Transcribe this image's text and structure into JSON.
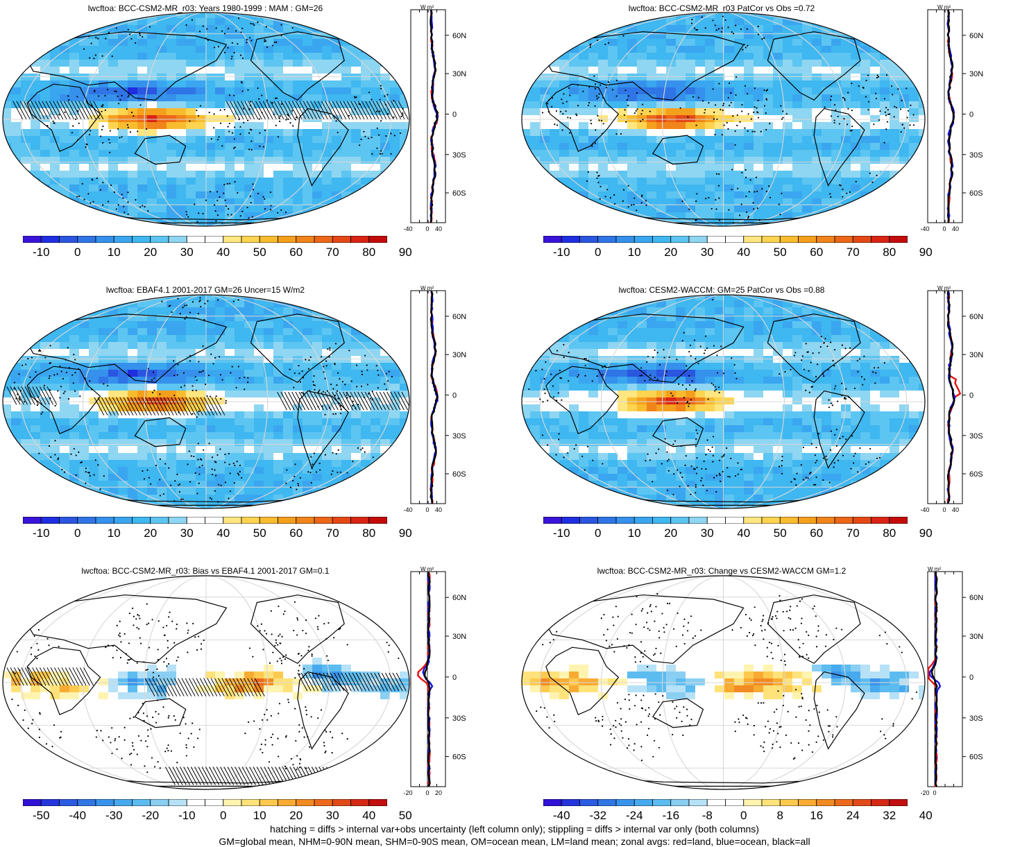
{
  "panels": [
    {
      "title": "lwcftoa: BCC-CSM2-MR_r03: Years 1980-1999 : MAM : GM=26",
      "colorbar": [
        "-10",
        "0",
        "10",
        "20",
        "30",
        "40",
        "50",
        "60",
        "70",
        "80",
        "90"
      ],
      "profile_xticks": [
        "-40",
        "0",
        "40"
      ],
      "profile_unit": "W m²",
      "lat_ticks": [
        "60N",
        "30N",
        "0",
        "30S",
        "60S"
      ],
      "palette": "full"
    },
    {
      "title": "lwcftoa: BCC-CSM2-MR_r03 PatCor vs Obs =0.72",
      "colorbar": [
        "-10",
        "0",
        "10",
        "20",
        "30",
        "40",
        "50",
        "60",
        "70",
        "80",
        "90"
      ],
      "profile_xticks": [
        "-40",
        "0",
        "40"
      ],
      "profile_unit": "W m²",
      "lat_ticks": [
        "60N",
        "30N",
        "0",
        "30S",
        "60S"
      ],
      "palette": "full"
    },
    {
      "title": "lwcftoa: EBAF4.1 2001-2017 GM=26 Uncer=15 W/m2",
      "colorbar": [
        "-10",
        "0",
        "10",
        "20",
        "30",
        "40",
        "50",
        "60",
        "70",
        "80",
        "90"
      ],
      "profile_xticks": [
        "-40",
        "0",
        "40"
      ],
      "profile_unit": "W m²",
      "lat_ticks": [
        "60N",
        "30N",
        "0",
        "30S",
        "60S"
      ],
      "palette": "full"
    },
    {
      "title": "lwcftoa: CESM2-WACCM: GM=25 PatCor vs Obs =0.88",
      "colorbar": [
        "-10",
        "0",
        "10",
        "20",
        "30",
        "40",
        "50",
        "60",
        "70",
        "80",
        "90"
      ],
      "profile_xticks": [
        "-40",
        "0",
        "40"
      ],
      "profile_unit": "W m²",
      "lat_ticks": [
        "60N",
        "30N",
        "0",
        "30S",
        "60S"
      ],
      "palette": "full"
    },
    {
      "title": "lwcftoa: BCC-CSM2-MR_r03: Bias vs EBAF4.1 2001-2017 GM=0.1",
      "colorbar": [
        "-50",
        "-40",
        "-30",
        "-20",
        "-10",
        "0",
        "10",
        "20",
        "30",
        "40",
        "50"
      ],
      "profile_xticks": [
        "-20",
        "0",
        "20"
      ],
      "profile_unit": "W m²",
      "lat_ticks": [
        "60N",
        "30N",
        "0",
        "30S",
        "60S"
      ],
      "palette": "diff"
    },
    {
      "title": "lwcftoa: BCC-CSM2-MR_r03: Change vs CESM2-WACCM GM=1.2",
      "colorbar": [
        "-40",
        "-32",
        "-24",
        "-16",
        "-8",
        "0",
        "8",
        "16",
        "24",
        "32",
        "40"
      ],
      "profile_xticks": [
        "-20",
        "0"
      ],
      "profile_unit": "W m²",
      "lat_ticks": [
        "60N",
        "30N",
        "0",
        "30S",
        "60S"
      ],
      "palette": "diff"
    }
  ],
  "footnote": {
    "line1": "hatching = diffs > internal var+obs uncertainty (left column only); stippling = diffs > internal var only (both columns)",
    "line2": "GM=global mean, NHM=0-90N mean, SHM=0-90S mean, OM=ocean mean, LM=land mean; zonal avgs: red=land, blue=ocean, black=all"
  },
  "colors": {
    "full_scale": [
      "#3a13d9",
      "#1e2ee0",
      "#2a56e0",
      "#2f75e6",
      "#3591ec",
      "#3aa6f0",
      "#3fb7f0",
      "#5dc5f1",
      "#8fd6f2",
      "#ffffff",
      "#ffffff",
      "#ffe680",
      "#fdd450",
      "#f9bc2f",
      "#f5a01d",
      "#f1841a",
      "#ec6718",
      "#e44815",
      "#d92414",
      "#c40b0b"
    ],
    "diff_scale": [
      "#2f12d6",
      "#2436db",
      "#2a5be0",
      "#3077e4",
      "#3a93ea",
      "#48aaee",
      "#5cbcf0",
      "#8acff2",
      "#b7e1f6",
      "#ffffff",
      "#ffffff",
      "#fff3b0",
      "#ffe27a",
      "#fdc94f",
      "#f8ab33",
      "#f28b23",
      "#ec6a1d",
      "#e14a18",
      "#d42a14",
      "#c20f0f"
    ],
    "land_line": "#e81010",
    "ocean_line": "#1414e0",
    "all_line": "#000000"
  }
}
